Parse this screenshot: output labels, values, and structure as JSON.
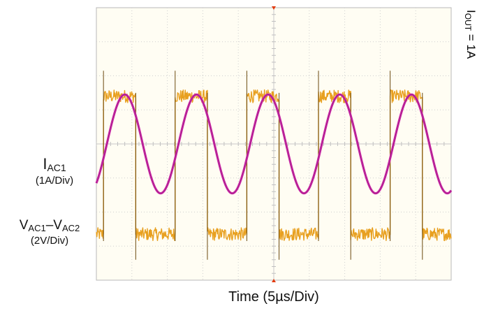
{
  "chart_data": {
    "type": "line",
    "title": "",
    "xlabel": "Time (5µs/Div)",
    "divisions": {
      "x": 10,
      "y": 8
    },
    "grid": true,
    "annotation": {
      "prefix": "I",
      "sub": "OUT",
      "suffix": " = 1A"
    },
    "series": [
      {
        "name": "VAC1–VAC2",
        "label_main": "V",
        "label_sub1": "AC1",
        "label_dash": "–",
        "label_main2": "V",
        "label_sub2": "AC2",
        "scale": "(2V/Div)",
        "color": "#e8a020",
        "kind": "square",
        "period_us": 10.1,
        "high_div": 5.4,
        "low_div": 1.35,
        "first_rising_us": 1.0,
        "duty": 0.45
      },
      {
        "name": "IAC1",
        "label_main": "I",
        "label_sub1": "AC1",
        "scale": "(1A/Div)",
        "color": "#cc2aa8",
        "kind": "sine",
        "period_us": 10.1,
        "center_div": 4.0,
        "amplitude_div": 1.45,
        "first_peak_us": 4.0
      }
    ]
  }
}
